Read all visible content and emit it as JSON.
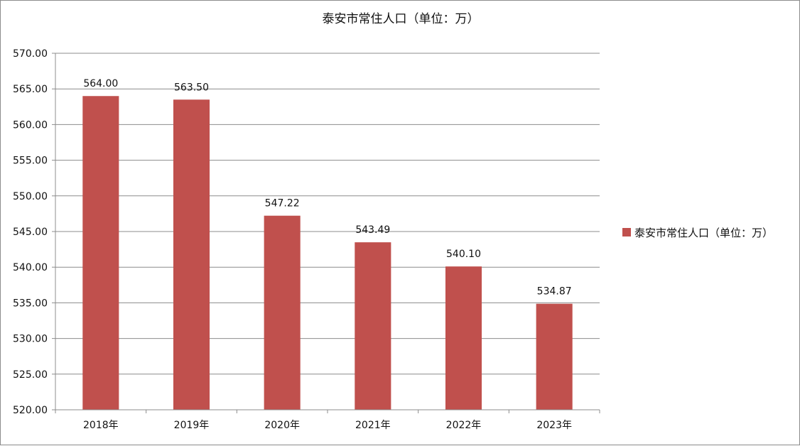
{
  "chart_data": {
    "type": "bar",
    "title": "泰安市常住人口（单位：万）",
    "categories": [
      "2018年",
      "2019年",
      "2020年",
      "2021年",
      "2022年",
      "2023年"
    ],
    "series": [
      {
        "name": "泰安市常住人口（单位：万）",
        "values": [
          564.0,
          563.5,
          547.22,
          543.49,
          540.1,
          534.87
        ],
        "labels": [
          "564.00",
          "563.50",
          "547.22",
          "543.49",
          "540.10",
          "534.87"
        ],
        "color": "#c0504d"
      }
    ],
    "ylim": [
      520,
      570
    ],
    "yticks": [
      "520.00",
      "525.00",
      "530.00",
      "535.00",
      "540.00",
      "545.00",
      "550.00",
      "555.00",
      "560.00",
      "565.00",
      "570.00"
    ],
    "grid": true,
    "legend": "right"
  }
}
